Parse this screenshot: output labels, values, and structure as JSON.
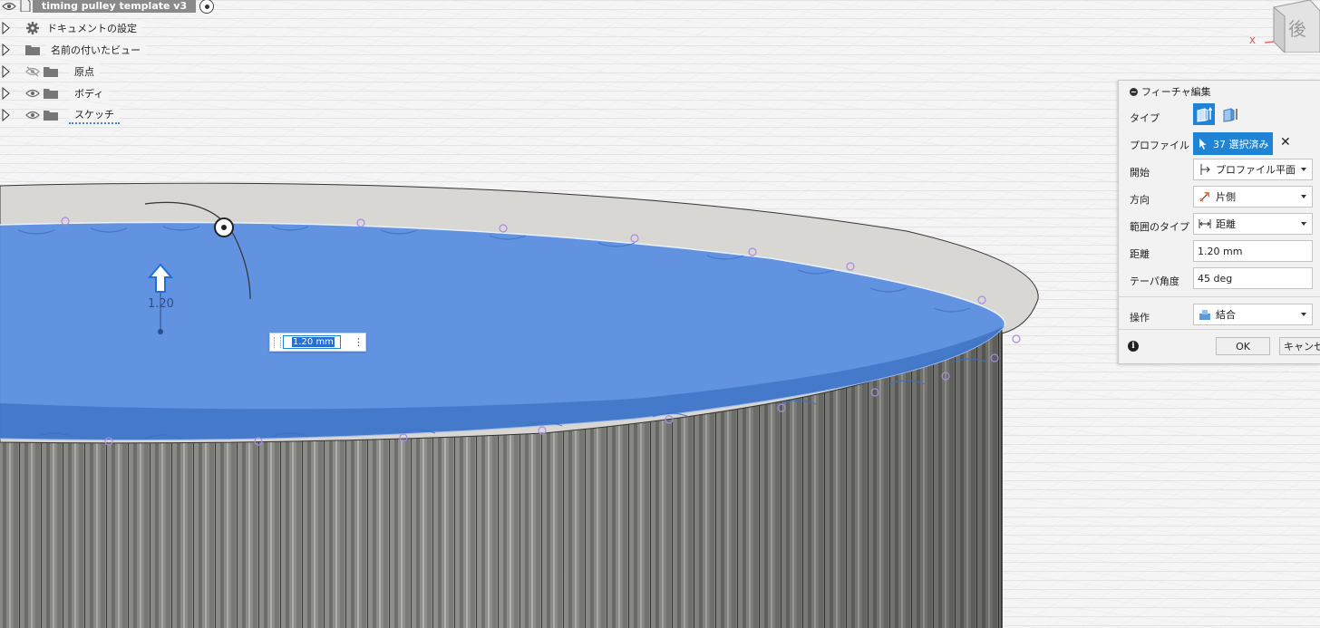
{
  "document": {
    "title": "timing pulley template v3"
  },
  "browser": {
    "items": [
      {
        "label": "ドキュメントの設定",
        "icon": "gear-icon"
      },
      {
        "label": "名前の付いたビュー",
        "icon": "folder-icon"
      },
      {
        "label": "原点",
        "icon": "folder-icon",
        "visibility": "hidden"
      },
      {
        "label": "ボディ",
        "icon": "folder-icon",
        "visibility": "visible"
      },
      {
        "label": "スケッチ",
        "icon": "folder-icon",
        "visibility": "visible"
      }
    ]
  },
  "viewcube": {
    "face": "後",
    "axis": "X"
  },
  "canvas": {
    "dimension_label": "1.20",
    "value_input": "1.20 mm",
    "colors": {
      "profile_blue": "#5b8fe0",
      "body_gray": "#8e8e8a",
      "rim": "#d8d6d2"
    }
  },
  "dialog": {
    "title": "フィーチャ編集",
    "rows": {
      "type": {
        "label": "タイプ"
      },
      "profile": {
        "label": "プロファイル",
        "value": "37 選択済み"
      },
      "start": {
        "label": "開始",
        "value": "プロファイル平面"
      },
      "direction": {
        "label": "方向",
        "value": "片側"
      },
      "extent_type": {
        "label": "範囲のタイプ",
        "value": "距離"
      },
      "distance": {
        "label": "距離",
        "value": "1.20 mm"
      },
      "taper": {
        "label": "テーパ角度",
        "value": "45 deg"
      },
      "operation": {
        "label": "操作",
        "value": "結合"
      }
    },
    "ok_label": "OK",
    "cancel_label": "キャンセル"
  }
}
